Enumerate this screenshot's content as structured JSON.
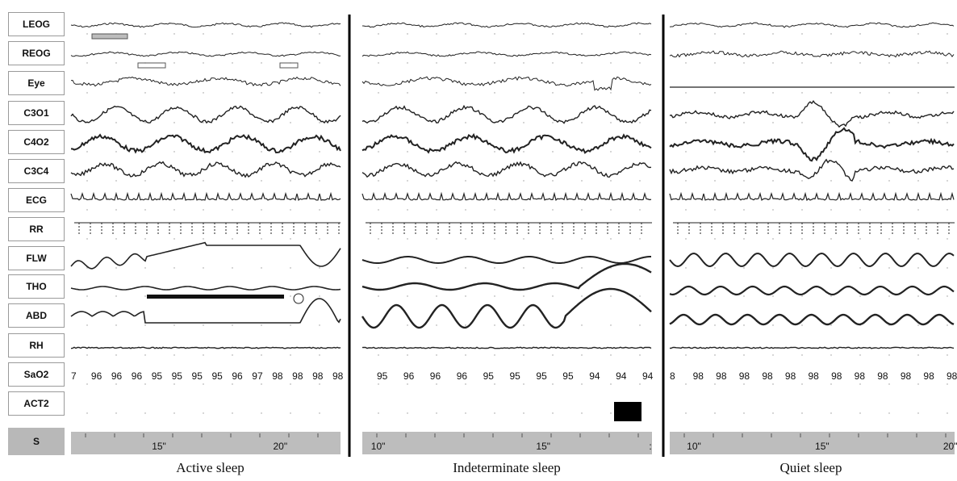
{
  "channels": [
    "LEOG",
    "REOG",
    "Eye",
    "C3O1",
    "C4O2",
    "C3C4",
    "ECG",
    "RR",
    "FLW",
    "THO",
    "ABD",
    "RH",
    "SaO2",
    "ACT2"
  ],
  "stage_label": "S",
  "colors": {
    "trace": "#222222",
    "bar_fill": "#bdbdbd",
    "divider": "#000000"
  },
  "panels": [
    {
      "caption": "Active sleep",
      "sao2": [
        "7",
        "96",
        "96",
        "96",
        "95",
        "95",
        "95",
        "95",
        "96",
        "97",
        "98",
        "98",
        "98",
        "98"
      ],
      "time_ticks": [
        {
          "label": "15\"",
          "t": 0.3
        },
        {
          "label": "20\"",
          "t": 0.75
        }
      ]
    },
    {
      "caption": "Indeterminate sleep",
      "sao2": [
        "95",
        "96",
        "96",
        "96",
        "95",
        "95",
        "95",
        "95",
        "94",
        "94",
        "94"
      ],
      "time_ticks": [
        {
          "label": "10\"",
          "t": 0.03
        },
        {
          "label": "15\"",
          "t": 0.6
        },
        {
          "label": ":",
          "t": 0.99
        }
      ]
    },
    {
      "caption": "Quiet sleep",
      "sao2": [
        "8",
        "98",
        "98",
        "98",
        "98",
        "98",
        "98",
        "98",
        "98",
        "98",
        "98",
        "98",
        "98"
      ],
      "time_ticks": [
        {
          "label": "10\"",
          "t": 0.06
        },
        {
          "label": "15\"",
          "t": 0.51
        },
        {
          "label": "20\"",
          "t": 0.96
        }
      ]
    }
  ]
}
